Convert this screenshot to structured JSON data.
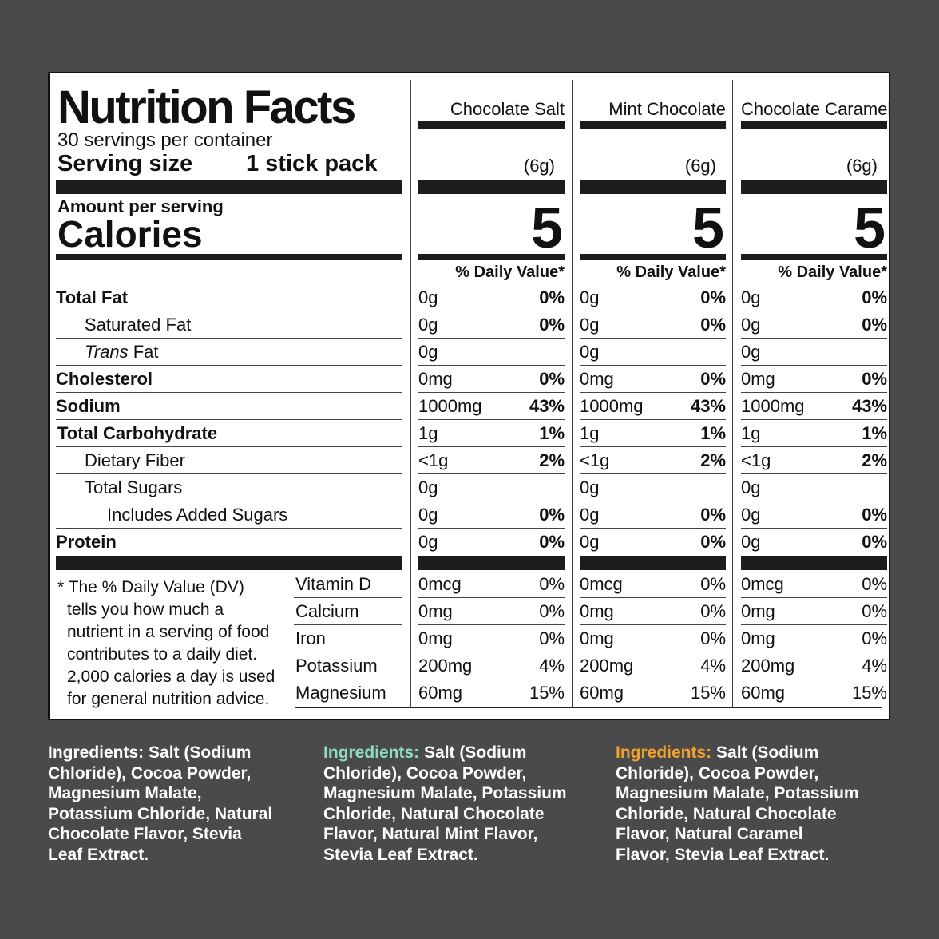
{
  "title": "Nutrition Facts",
  "servings_per_container": "30 servings per container",
  "serving_size_label": "Serving size",
  "serving_size_value": "1 stick pack",
  "amount_per_serving": "Amount per serving",
  "calories_label": "Calories",
  "dv_header": "% Daily Value*",
  "products": [
    {
      "name": "Chocolate Salt",
      "grams": "(6g)",
      "calories": "5"
    },
    {
      "name": "Mint Chocolate",
      "grams": "(6g)",
      "calories": "5"
    },
    {
      "name": "Chocolate Caramel",
      "grams": "(6g)",
      "calories": "5"
    }
  ],
  "nutrients": [
    {
      "name": "Total Fat",
      "vals": [
        "0g",
        "0g",
        "0g"
      ],
      "dv": [
        "0%",
        "0%",
        "0%"
      ]
    },
    {
      "name": "Saturated Fat",
      "vals": [
        "0g",
        "0g",
        "0g"
      ],
      "dv": [
        "0%",
        "0%",
        "0%"
      ]
    },
    {
      "name_italic": "Trans",
      "name_rest": " Fat",
      "vals": [
        "0g",
        "0g",
        "0g"
      ]
    },
    {
      "name": "Cholesterol",
      "vals": [
        "0mg",
        "0mg",
        "0mg"
      ],
      "dv": [
        "0%",
        "0%",
        "0%"
      ]
    },
    {
      "name": "Sodium",
      "vals": [
        "1000mg",
        "1000mg",
        "1000mg"
      ],
      "dv": [
        "43%",
        "43%",
        "43%"
      ]
    },
    {
      "name": "Total Carbohydrate",
      "vals": [
        "1g",
        "1g",
        "1g"
      ],
      "dv": [
        "1%",
        "1%",
        "1%"
      ]
    },
    {
      "name": "Dietary Fiber",
      "vals": [
        "<1g",
        "<1g",
        "<1g"
      ],
      "dv": [
        "2%",
        "2%",
        "2%"
      ]
    },
    {
      "name": "Total Sugars",
      "vals": [
        "0g",
        "0g",
        "0g"
      ]
    },
    {
      "name": "Includes Added Sugars",
      "vals": [
        "0g",
        "0g",
        "0g"
      ],
      "dv": [
        "0%",
        "0%",
        "0%"
      ]
    },
    {
      "name": "Protein",
      "vals": [
        "0g",
        "0g",
        "0g"
      ],
      "dv": [
        "0%",
        "0%",
        "0%"
      ]
    }
  ],
  "vitamins": [
    {
      "name": "Vitamin D",
      "vals": [
        "0mcg",
        "0mcg",
        "0mcg"
      ],
      "dv": [
        "0%",
        "0%",
        "0%"
      ]
    },
    {
      "name": "Calcium",
      "vals": [
        "0mg",
        "0mg",
        "0mg"
      ],
      "dv": [
        "0%",
        "0%",
        "0%"
      ]
    },
    {
      "name": "Iron",
      "vals": [
        "0mg",
        "0mg",
        "0mg"
      ],
      "dv": [
        "0%",
        "0%",
        "0%"
      ]
    },
    {
      "name": "Potassium",
      "vals": [
        "200mg",
        "200mg",
        "200mg"
      ],
      "dv": [
        "4%",
        "4%",
        "4%"
      ]
    },
    {
      "name": "Magnesium",
      "vals": [
        "60mg",
        "60mg",
        "60mg"
      ],
      "dv": [
        "15%",
        "15%",
        "15%"
      ]
    }
  ],
  "footnote": [
    "* The % Daily Value (DV)",
    "tells you how much a",
    "nutrient in a serving of food",
    "contributes to a daily diet.",
    "2,000 calories a day is used",
    "for general nutrition advice."
  ],
  "ingredients": [
    {
      "label": "Ingredients:",
      "color": "#ffffff",
      "lines": [
        " Salt (Sodium",
        "Chloride), Cocoa Powder,",
        "Magnesium Malate,",
        "Potassium Chloride, Natural",
        "Chocolate Flavor, Stevia",
        "Leaf Extract."
      ]
    },
    {
      "label": "Ingredients:",
      "color": "#8fdcc0",
      "lines": [
        " Salt (Sodium",
        "Chloride), Cocoa Powder,",
        "Magnesium Malate, Potassium",
        "Chloride, Natural Chocolate",
        "Flavor, Natural Mint Flavor,",
        "Stevia Leaf Extract."
      ]
    },
    {
      "label": "Ingredients:",
      "color": "#f0a030",
      "lines": [
        " Salt (Sodium",
        "Chloride), Cocoa Powder,",
        "Magnesium Malate, Potassium",
        "Chloride, Natural Chocolate",
        "Flavor, Natural Caramel",
        "Flavor, Stevia Leaf Extract."
      ]
    }
  ]
}
